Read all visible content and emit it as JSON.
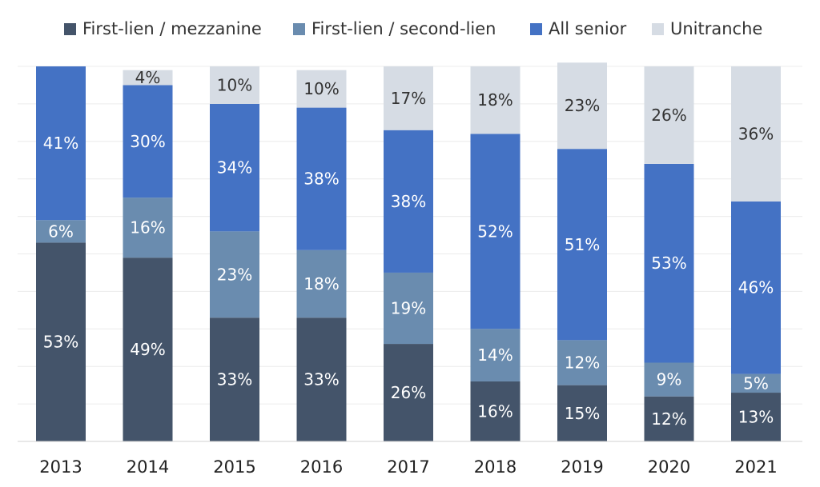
{
  "chart_data": {
    "type": "bar",
    "stacked": true,
    "categories": [
      "2013",
      "2014",
      "2015",
      "2016",
      "2017",
      "2018",
      "2019",
      "2020",
      "2021"
    ],
    "series": [
      {
        "name": "First-lien / mezzanine",
        "color": "#44546a",
        "label_color": "#ffffff",
        "values": [
          53,
          49,
          33,
          33,
          26,
          16,
          15,
          12,
          13
        ]
      },
      {
        "name": "First-lien / second-lien",
        "color": "#6a8caf",
        "label_color": "#ffffff",
        "values": [
          6,
          16,
          23,
          18,
          19,
          14,
          12,
          9,
          5
        ]
      },
      {
        "name": "All senior",
        "color": "#4472c4",
        "label_color": "#ffffff",
        "values": [
          41,
          30,
          34,
          38,
          38,
          52,
          51,
          53,
          46
        ]
      },
      {
        "name": "Unitranche",
        "color": "#d6dce4",
        "label_color": "#333333",
        "values": [
          0,
          4,
          10,
          10,
          17,
          18,
          23,
          26,
          36
        ]
      }
    ],
    "value_suffix": "%",
    "ylim": [
      0,
      100
    ],
    "grid": true,
    "legend_position": "top"
  }
}
